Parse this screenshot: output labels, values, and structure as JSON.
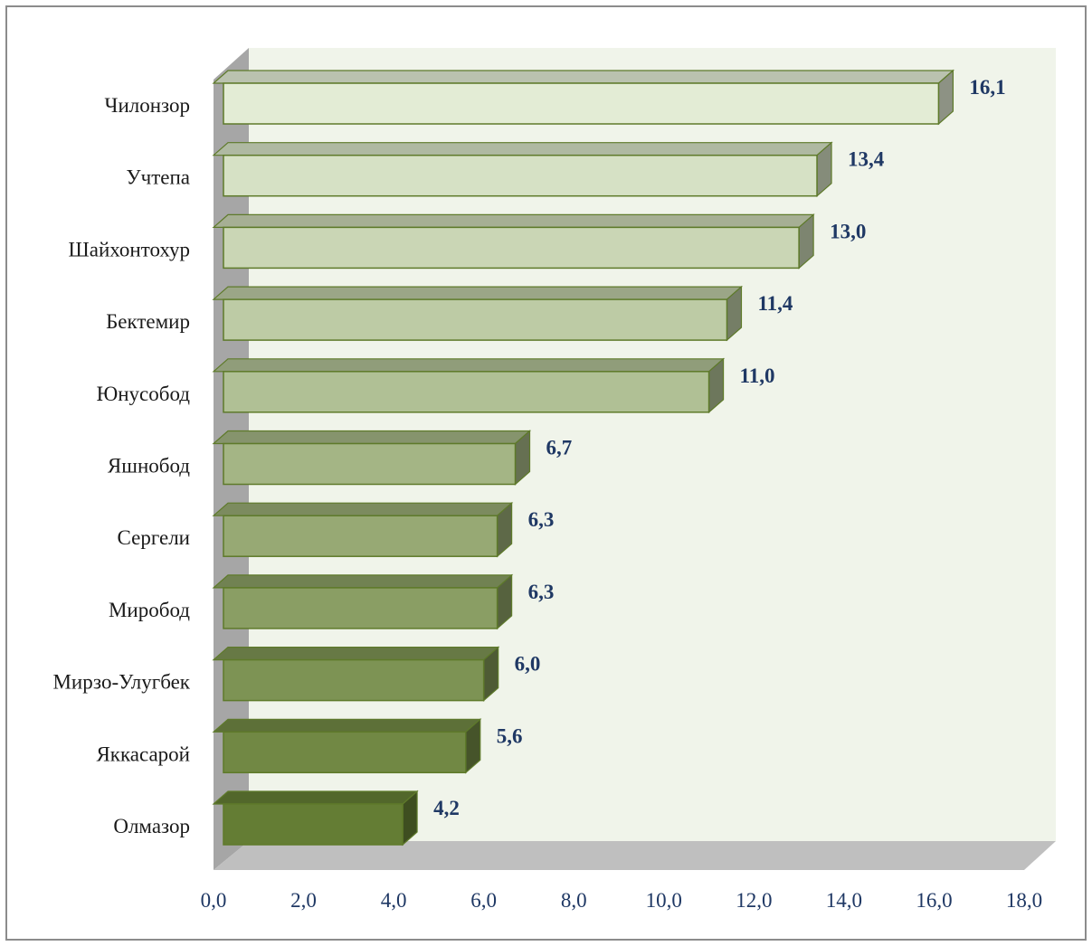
{
  "chart_data": {
    "type": "bar",
    "orientation": "horizontal",
    "categories": [
      "Чилонзор",
      "Учтепа",
      "Шайхонтохур",
      "Бектемир",
      "Юнусобод",
      "Яшнобод ",
      "Сергели",
      "Миробод",
      "Мирзо-Улугбек",
      "Яккасарой",
      "Олмазор"
    ],
    "values": [
      16.1,
      13.4,
      13.0,
      11.4,
      11.0,
      6.7,
      6.3,
      6.3,
      6.0,
      5.6,
      4.2
    ],
    "value_labels": [
      "16,1",
      "13,4",
      "13,0",
      "11,4",
      "11,0",
      "6,7",
      "6,3",
      "6,3",
      "6,0",
      "5,6",
      "4,2"
    ],
    "x_ticks": [
      "0,0",
      "2,0",
      "4,0",
      "6,0",
      "8,0",
      "10,0",
      "12,0",
      "14,0",
      "16,0",
      "18,0"
    ],
    "xlim": [
      0,
      18
    ],
    "title": "",
    "xlabel": "",
    "ylabel": "",
    "grid": false,
    "legend": "none",
    "style": "3d",
    "colors": {
      "bar_gradient_top": "#e3ecd5",
      "bar_gradient_bottom": "#647d34",
      "bar_border": "#5e7a2a",
      "plot_wall": "#f0f4ea",
      "side_wall": "#a6a6a6",
      "floor": "#bfbfbf",
      "value_text": "#1f3864"
    }
  }
}
